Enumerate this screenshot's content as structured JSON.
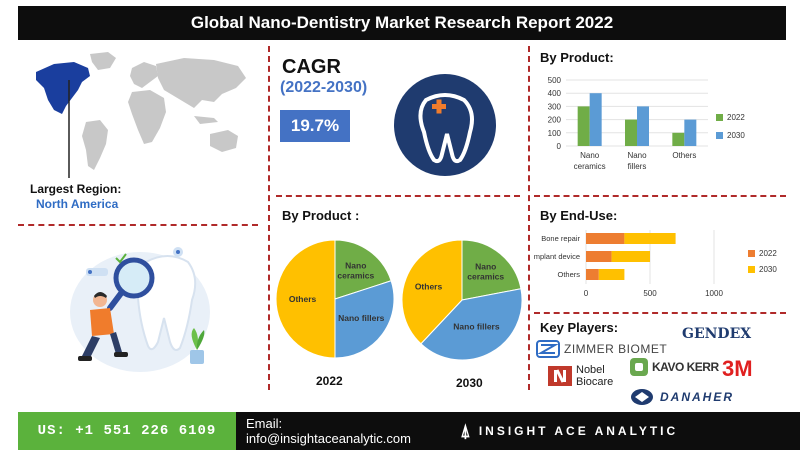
{
  "header": {
    "title": "Global Nano-Dentistry Market Research Report 2022"
  },
  "region": {
    "label": "Largest Region:",
    "value": "North America"
  },
  "cagr": {
    "label": "CAGR",
    "period": "(2022-2030)",
    "value": "19.7%"
  },
  "sections": {
    "by_product_top": "By Product:",
    "by_product_pies": "By Product :",
    "by_end_use": "By End-Use:",
    "key_players": "Key Players:"
  },
  "chart_data": [
    {
      "type": "bar",
      "title": "By Product:",
      "categories": [
        [
          "Nano",
          "ceramics"
        ],
        [
          "Nano",
          "fillers"
        ],
        [
          "Others"
        ]
      ],
      "series": [
        {
          "name": "2022",
          "values": [
            300,
            200,
            100
          ],
          "color": "#70ad47"
        },
        {
          "name": "2030",
          "values": [
            400,
            300,
            200
          ],
          "color": "#5b9bd5"
        }
      ],
      "ylim": [
        0,
        500
      ],
      "yticks": [
        "0",
        "100",
        "200",
        "300",
        "400",
        "500"
      ],
      "legend": "right"
    },
    {
      "type": "pie",
      "title": "2022",
      "slices": [
        {
          "label": [
            "Nano",
            "ceramics"
          ],
          "value": 20,
          "color": "#70ad47"
        },
        {
          "label": [
            "Nano fillers"
          ],
          "value": 30,
          "color": "#5b9bd5"
        },
        {
          "label": [
            "Others"
          ],
          "value": 50,
          "color": "#ffc000"
        }
      ]
    },
    {
      "type": "pie",
      "title": "2030",
      "slices": [
        {
          "label": [
            "Nano",
            "ceramics"
          ],
          "value": 22,
          "color": "#70ad47"
        },
        {
          "label": [
            "Nano fillers"
          ],
          "value": 40,
          "color": "#5b9bd5"
        },
        {
          "label": [
            "Others"
          ],
          "value": 38,
          "color": "#ffc000"
        }
      ]
    },
    {
      "type": "bar",
      "orientation": "horizontal",
      "stacked": true,
      "title": "By End-Use:",
      "categories": [
        "Bone repair",
        "mplant device",
        "Others"
      ],
      "series": [
        {
          "name": "2022",
          "values": [
            300,
            200,
            100
          ],
          "color": "#ed7d31"
        },
        {
          "name": "2030",
          "values": [
            400,
            300,
            200
          ],
          "color": "#ffc000"
        }
      ],
      "xlim": [
        0,
        1000
      ],
      "xticks": [
        "0",
        "500",
        "1000"
      ],
      "legend": "right"
    }
  ],
  "key_players": [
    "ZIMMER BIOMET",
    "GENDEX",
    "Nobel Biocare",
    "KAVO KERR",
    "3M",
    "DANAHER"
  ],
  "footer": {
    "phone": "US: +1 551 226 6109",
    "email": "Email: info@insightaceanalytic.com",
    "brand": "INSIGHT ACE ANALYTIC"
  },
  "colors": {
    "accent_blue": "#4472c4",
    "divider_red": "#b02a2a",
    "footer_green": "#5bb23c",
    "dark": "#0d0d0d"
  }
}
